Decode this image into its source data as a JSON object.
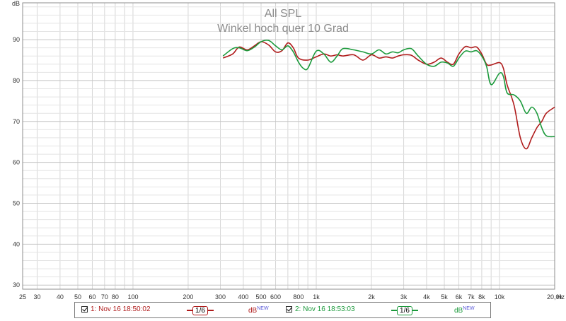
{
  "chart_data": {
    "type": "line",
    "title": "All SPL",
    "subtitle": "Winkel hoch quer 10 Grad",
    "ylabel": "dB",
    "xunit": "Hz",
    "x_scale": "log",
    "xlim": [
      25,
      20000
    ],
    "ylim": [
      29,
      99
    ],
    "grid": true,
    "y_ticks": [
      30,
      40,
      50,
      60,
      70,
      80,
      90
    ],
    "y_tick_labels": [
      "30",
      "40",
      "50",
      "60",
      "70",
      "80",
      "90"
    ],
    "x_ticks": [
      25,
      30,
      40,
      50,
      60,
      70,
      80,
      100,
      200,
      300,
      400,
      500,
      600,
      800,
      1000,
      2000,
      3000,
      4000,
      5000,
      6000,
      7000,
      8000,
      10000,
      20000
    ],
    "x_tick_labels": [
      "25",
      "30",
      "40",
      "50",
      "60",
      "70",
      "80",
      "100",
      "200",
      "300",
      "400",
      "500",
      "600",
      "800",
      "1k",
      "2k",
      "3k",
      "4k",
      "5k",
      "6k",
      "7k",
      "8k",
      "10k",
      "20,0k"
    ],
    "series": [
      {
        "name": "1: Nov 16 18:50:02",
        "color": "#b01c1c",
        "x": [
          310,
          350,
          380,
          420,
          460,
          500,
          550,
          600,
          650,
          700,
          750,
          800,
          900,
          1000,
          1100,
          1200,
          1300,
          1400,
          1600,
          1800,
          2000,
          2200,
          2400,
          2600,
          2800,
          3000,
          3300,
          3600,
          4000,
          4400,
          4800,
          5200,
          5600,
          6000,
          6500,
          7000,
          7500,
          8000,
          8500,
          9000,
          10000,
          10500,
          11000,
          12000,
          13000,
          14000,
          15000,
          16000,
          17000,
          18000,
          20000
        ],
        "y": [
          85.5,
          86.5,
          88.2,
          87.5,
          88.5,
          89.5,
          88.7,
          87.0,
          87.3,
          89.2,
          88.0,
          85.5,
          85.0,
          85.8,
          86.5,
          86.0,
          86.3,
          86.0,
          86.3,
          85.0,
          86.3,
          85.5,
          85.8,
          85.5,
          86.0,
          86.3,
          86.2,
          85.0,
          84.0,
          84.5,
          85.5,
          84.5,
          84.0,
          86.5,
          88.3,
          88.0,
          88.2,
          86.5,
          84.0,
          83.8,
          84.4,
          83.0,
          79.0,
          74.0,
          66.0,
          63.3,
          66.0,
          68.5,
          70.0,
          72.0,
          73.5
        ]
      },
      {
        "name": "2: Nov 16 18:53:03",
        "color": "#1c9a3c",
        "x": [
          310,
          350,
          380,
          420,
          460,
          500,
          550,
          600,
          650,
          700,
          750,
          800,
          850,
          900,
          1000,
          1100,
          1200,
          1300,
          1400,
          1600,
          1800,
          2000,
          2200,
          2400,
          2600,
          2800,
          3000,
          3300,
          3600,
          4000,
          4400,
          4800,
          5200,
          5600,
          6000,
          6500,
          7000,
          7500,
          8000,
          8500,
          9000,
          10000,
          10500,
          11000,
          12000,
          13000,
          14000,
          15000,
          16000,
          17000,
          18000,
          20000
        ],
        "y": [
          86.0,
          87.8,
          88.0,
          87.3,
          88.2,
          89.5,
          89.8,
          88.5,
          87.5,
          88.5,
          87.0,
          84.5,
          83.0,
          83.0,
          87.2,
          86.5,
          84.5,
          86.0,
          87.8,
          87.5,
          87.0,
          86.5,
          87.5,
          86.5,
          87.0,
          86.8,
          87.5,
          87.8,
          86.0,
          84.0,
          83.5,
          84.5,
          84.3,
          83.5,
          85.5,
          87.2,
          87.0,
          87.3,
          86.0,
          83.5,
          79.0,
          81.8,
          81.0,
          77.0,
          76.5,
          75.0,
          72.0,
          73.5,
          72.0,
          68.5,
          66.5,
          66.3
        ]
      }
    ]
  },
  "legend": {
    "items": [
      {
        "label": "1: Nov 16 18:50:02",
        "smoothing": "1/6",
        "unit": "dB",
        "unit_sup": "NEW",
        "color": "#b01c1c"
      },
      {
        "label": "2: Nov 16 18:53:03",
        "smoothing": "1/6",
        "unit": "dB",
        "unit_sup": "NEW",
        "color": "#1c9a3c"
      }
    ]
  }
}
